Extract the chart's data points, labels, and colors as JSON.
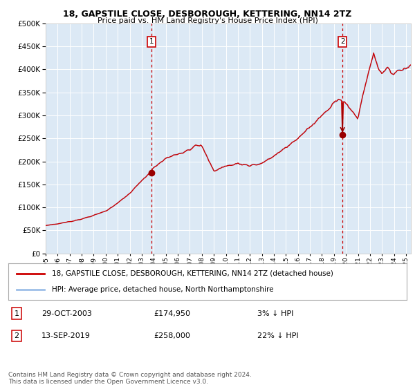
{
  "title": "18, GAPSTILE CLOSE, DESBOROUGH, KETTERING, NN14 2TZ",
  "subtitle": "Price paid vs. HM Land Registry's House Price Index (HPI)",
  "legend_line1": "18, GAPSTILE CLOSE, DESBOROUGH, KETTERING, NN14 2TZ (detached house)",
  "legend_line2": "HPI: Average price, detached house, North Northamptonshire",
  "annotation1_date": "29-OCT-2003",
  "annotation1_price": "£174,950",
  "annotation1_hpi": "3% ↓ HPI",
  "annotation2_date": "13-SEP-2019",
  "annotation2_price": "£258,000",
  "annotation2_hpi": "22% ↓ HPI",
  "footnote": "Contains HM Land Registry data © Crown copyright and database right 2024.\nThis data is licensed under the Open Government Licence v3.0.",
  "sale1_year": 2003.83,
  "sale1_value": 174950,
  "sale2_year": 2019.71,
  "sale2_value": 258000,
  "hpi_color": "#9dbfe8",
  "price_color": "#cc0000",
  "plot_bg": "#dce9f5",
  "grid_color": "#ffffff",
  "vline_color": "#cc0000",
  "marker_color": "#990000",
  "ylim_max": 500000,
  "xlim_start": 1995.0,
  "xlim_end": 2025.4
}
